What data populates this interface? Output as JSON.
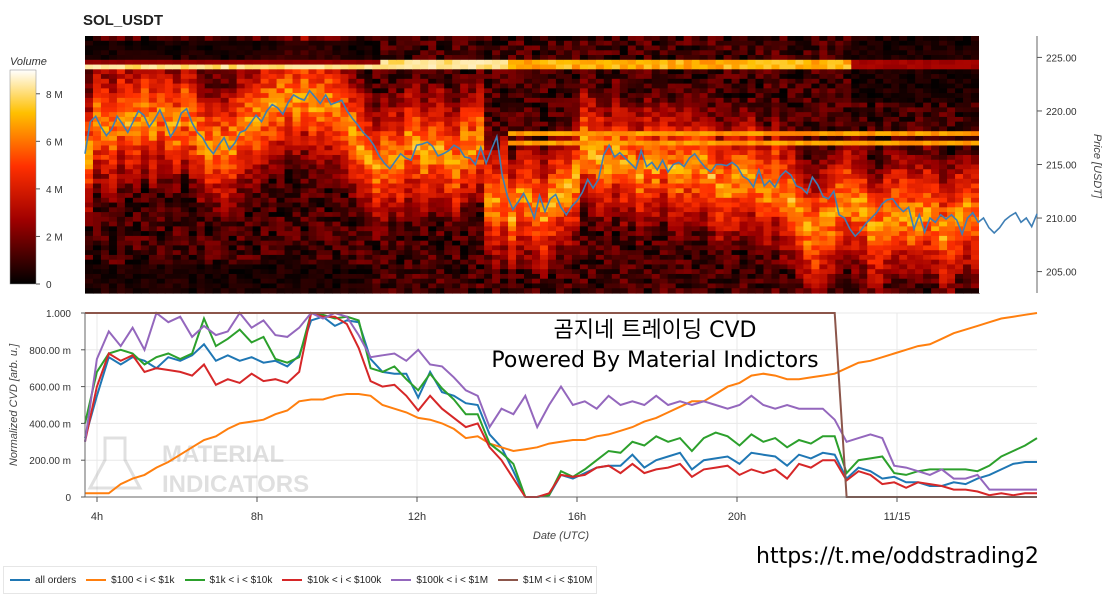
{
  "chart_data": [
    {
      "type": "heatmap",
      "title": "SOL_USDT",
      "colorbar": {
        "label": "Volume",
        "ticks": [
          "0",
          "2 M",
          "4 M",
          "6 M",
          "8 M"
        ],
        "range": [
          0,
          9000000
        ]
      },
      "y_axis": {
        "label": "Price [USDT]",
        "ticks": [
          "205.00",
          "210.00",
          "215.00",
          "220.00",
          "225.00"
        ],
        "range": [
          203,
          227
        ]
      },
      "price_series": [
        216.0,
        219.0,
        219.5,
        218.5,
        217.7,
        218.3,
        219.5,
        218.8,
        218.0,
        219.0,
        220.0,
        219.6,
        218.5,
        219.2,
        220.1,
        219.0,
        217.6,
        218.4,
        219.8,
        220.2,
        218.9,
        218.0,
        217.5,
        216.6,
        216.0,
        216.8,
        217.5,
        216.4,
        217.0,
        218.0,
        218.2,
        218.9,
        219.6,
        219.0,
        220.0,
        220.6,
        220.3,
        219.7,
        220.8,
        221.5,
        221.2,
        221.0,
        221.9,
        221.3,
        220.7,
        221.5,
        220.6,
        220.8,
        221.0,
        220.0,
        219.3,
        218.7,
        218.0,
        217.5,
        216.8,
        215.8,
        215.1,
        214.6,
        215.3,
        216.0,
        215.6,
        215.4,
        216.8,
        216.9,
        217.1,
        216.7,
        215.8,
        216.0,
        216.3,
        216.8,
        216.5,
        215.7,
        215.6,
        215.0,
        216.6,
        215.1,
        216.4,
        217.6,
        214.0,
        212.0,
        210.8,
        211.5,
        212.3,
        211.3,
        210.0,
        212.1,
        210.6,
        211.8,
        212.2,
        211.0,
        210.3,
        211.1,
        211.6,
        212.4,
        213.6,
        212.8,
        213.6,
        215.9,
        216.8,
        215.7,
        216.1,
        215.6,
        215.1,
        214.6,
        216.3,
        214.8,
        215.2,
        214.5,
        215.4,
        214.3,
        215.0,
        215.2,
        214.8,
        215.6,
        216.0,
        215.3,
        214.7,
        214.3,
        215.0,
        215.0,
        214.9,
        215.2,
        214.8,
        213.9,
        213.6,
        212.9,
        214.5,
        213.0,
        213.5,
        212.9,
        213.9,
        214.4,
        214.0,
        213.0,
        212.8,
        212.3,
        213.8,
        213.1,
        212.0,
        211.8,
        212.5,
        210.3,
        210.0,
        209.0,
        208.3,
        208.8,
        209.5,
        210.0,
        210.5,
        211.3,
        211.7,
        211.8,
        211.1,
        210.6,
        211.0,
        209.0,
        210.3,
        208.7,
        210.0,
        209.6,
        210.3,
        209.9,
        210.3,
        209.8,
        208.5,
        210.0,
        210.5,
        209.6,
        210.0,
        209.1,
        208.6,
        209.1,
        209.8,
        210.2,
        210.5,
        209.6,
        210.0,
        209.2,
        210.4
      ]
    },
    {
      "type": "line",
      "title": "",
      "xlabel": "Date (UTC)",
      "ylabel": "Normalized CVD [arb. u.]",
      "x_ticks": [
        "4h",
        "8h",
        "12h",
        "16h",
        "20h",
        "11/15"
      ],
      "y_ticks": [
        "0",
        "200.00 m",
        "400.00 m",
        "600.00 m",
        "800.00 m",
        "1.000"
      ],
      "ylim": [
        0,
        1
      ],
      "legend_position": "bottom",
      "series": [
        {
          "name": "all orders",
          "color": "#1f77b4",
          "values": [
            0.32,
            0.55,
            0.76,
            0.72,
            0.76,
            0.74,
            0.7,
            0.76,
            0.74,
            0.77,
            0.83,
            0.74,
            0.77,
            0.74,
            0.76,
            0.73,
            0.74,
            0.71,
            0.77,
            0.96,
            0.98,
            0.93,
            0.96,
            0.95,
            0.75,
            0.68,
            0.67,
            0.67,
            0.54,
            0.68,
            0.57,
            0.55,
            0.51,
            0.5,
            0.34,
            0.27,
            0.14,
            0.0,
            0.0,
            0.01,
            0.12,
            0.1,
            0.13,
            0.16,
            0.17,
            0.17,
            0.23,
            0.16,
            0.2,
            0.22,
            0.24,
            0.15,
            0.2,
            0.21,
            0.22,
            0.18,
            0.24,
            0.23,
            0.22,
            0.17,
            0.23,
            0.21,
            0.24,
            0.23,
            0.1,
            0.16,
            0.14,
            0.1,
            0.11,
            0.08,
            0.08,
            0.06,
            0.06,
            0.08,
            0.07,
            0.1,
            0.12,
            0.15,
            0.18,
            0.19,
            0.19
          ]
        },
        {
          "name": "$100 < i < $1k",
          "color": "#ff7f0e",
          "values": [
            0.02,
            0.02,
            0.02,
            0.07,
            0.1,
            0.12,
            0.16,
            0.19,
            0.23,
            0.27,
            0.31,
            0.33,
            0.37,
            0.4,
            0.41,
            0.42,
            0.45,
            0.47,
            0.52,
            0.53,
            0.53,
            0.55,
            0.56,
            0.56,
            0.55,
            0.5,
            0.48,
            0.46,
            0.43,
            0.42,
            0.4,
            0.37,
            0.32,
            0.33,
            0.29,
            0.27,
            0.25,
            0.26,
            0.27,
            0.29,
            0.3,
            0.31,
            0.31,
            0.33,
            0.34,
            0.36,
            0.38,
            0.41,
            0.43,
            0.46,
            0.49,
            0.52,
            0.52,
            0.56,
            0.6,
            0.62,
            0.66,
            0.67,
            0.66,
            0.64,
            0.64,
            0.65,
            0.66,
            0.67,
            0.7,
            0.73,
            0.74,
            0.76,
            0.78,
            0.8,
            0.82,
            0.83,
            0.86,
            0.89,
            0.91,
            0.93,
            0.95,
            0.97,
            0.98,
            0.99,
            1.0
          ]
        },
        {
          "name": "$1k < i < $10k",
          "color": "#2ca02c",
          "values": [
            0.4,
            0.68,
            0.78,
            0.8,
            0.78,
            0.72,
            0.76,
            0.78,
            0.75,
            0.78,
            0.97,
            0.82,
            0.86,
            0.91,
            0.84,
            0.87,
            0.75,
            0.73,
            0.76,
            1.0,
            0.99,
            0.97,
            0.98,
            0.96,
            0.7,
            0.68,
            0.71,
            0.64,
            0.58,
            0.67,
            0.59,
            0.53,
            0.45,
            0.45,
            0.29,
            0.24,
            0.18,
            0.0,
            0.0,
            0.01,
            0.14,
            0.11,
            0.15,
            0.2,
            0.25,
            0.24,
            0.3,
            0.28,
            0.33,
            0.3,
            0.32,
            0.25,
            0.32,
            0.35,
            0.33,
            0.28,
            0.34,
            0.3,
            0.32,
            0.27,
            0.31,
            0.29,
            0.33,
            0.33,
            0.13,
            0.2,
            0.21,
            0.22,
            0.13,
            0.12,
            0.14,
            0.15,
            0.15,
            0.15,
            0.15,
            0.14,
            0.17,
            0.22,
            0.25,
            0.28,
            0.32
          ]
        },
        {
          "name": "$10k < i < $100k",
          "color": "#d62728",
          "values": [
            0.3,
            0.6,
            0.78,
            0.74,
            0.77,
            0.68,
            0.7,
            0.69,
            0.68,
            0.66,
            0.72,
            0.61,
            0.64,
            0.62,
            0.67,
            0.63,
            0.64,
            0.62,
            0.68,
            1.0,
            0.98,
            0.98,
            0.94,
            0.81,
            0.63,
            0.6,
            0.61,
            0.55,
            0.47,
            0.55,
            0.48,
            0.43,
            0.38,
            0.4,
            0.27,
            0.2,
            0.1,
            0.0,
            0.0,
            0.02,
            0.12,
            0.11,
            0.12,
            0.16,
            0.17,
            0.13,
            0.18,
            0.13,
            0.15,
            0.16,
            0.18,
            0.11,
            0.15,
            0.16,
            0.17,
            0.12,
            0.15,
            0.13,
            0.15,
            0.1,
            0.18,
            0.16,
            0.2,
            0.2,
            0.09,
            0.14,
            0.12,
            0.07,
            0.08,
            0.05,
            0.08,
            0.07,
            0.06,
            0.04,
            0.04,
            0.03,
            0.01,
            0.02,
            0.01,
            0.02,
            0.02
          ]
        },
        {
          "name": "$100k < i < $1M",
          "color": "#9467bd",
          "values": [
            0.3,
            0.75,
            0.9,
            0.82,
            0.92,
            0.8,
            1.0,
            0.95,
            0.98,
            0.87,
            0.93,
            0.88,
            0.9,
            1.0,
            0.92,
            0.96,
            0.88,
            0.87,
            0.92,
            1.0,
            0.97,
            1.0,
            0.98,
            0.88,
            0.76,
            0.77,
            0.78,
            0.74,
            0.8,
            0.72,
            0.71,
            0.65,
            0.58,
            0.55,
            0.38,
            0.48,
            0.45,
            0.55,
            0.38,
            0.5,
            0.6,
            0.5,
            0.52,
            0.48,
            0.55,
            0.5,
            0.52,
            0.5,
            0.55,
            0.5,
            0.52,
            0.5,
            0.52,
            0.5,
            0.48,
            0.5,
            0.55,
            0.5,
            0.48,
            0.5,
            0.48,
            0.48,
            0.48,
            0.42,
            0.3,
            0.32,
            0.34,
            0.32,
            0.17,
            0.16,
            0.14,
            0.12,
            0.15,
            0.1,
            0.1,
            0.12,
            0.04,
            0.04,
            0.04,
            0.04,
            0.04
          ]
        },
        {
          "name": "$1M < i < $10M",
          "color": "#8c564b",
          "values": [
            1,
            1,
            1,
            1,
            1,
            1,
            1,
            1,
            1,
            1,
            1,
            1,
            1,
            1,
            1,
            1,
            1,
            1,
            1,
            1,
            1,
            1,
            1,
            1,
            1,
            1,
            1,
            1,
            1,
            1,
            1,
            1,
            1,
            1,
            1,
            1,
            1,
            1,
            1,
            1,
            1,
            1,
            1,
            1,
            1,
            1,
            1,
            1,
            1,
            1,
            1,
            1,
            1,
            1,
            1,
            1,
            1,
            1,
            1,
            1,
            1,
            1,
            1,
            1,
            0.0,
            0.0,
            0.0,
            0.0,
            0.0,
            0.0,
            0.0,
            0.0,
            0.0,
            0.0,
            0.0,
            0.0,
            0.0,
            0.0,
            0.0,
            0.0,
            0.0
          ]
        }
      ]
    }
  ],
  "overlay": {
    "line1": "곰지네 트레이딩 CVD",
    "line2": "Powered By Material Indictors",
    "url": "https://t.me/oddstrading2"
  },
  "watermark": {
    "line1": "MATERIAL",
    "line2": "INDICATORS"
  }
}
